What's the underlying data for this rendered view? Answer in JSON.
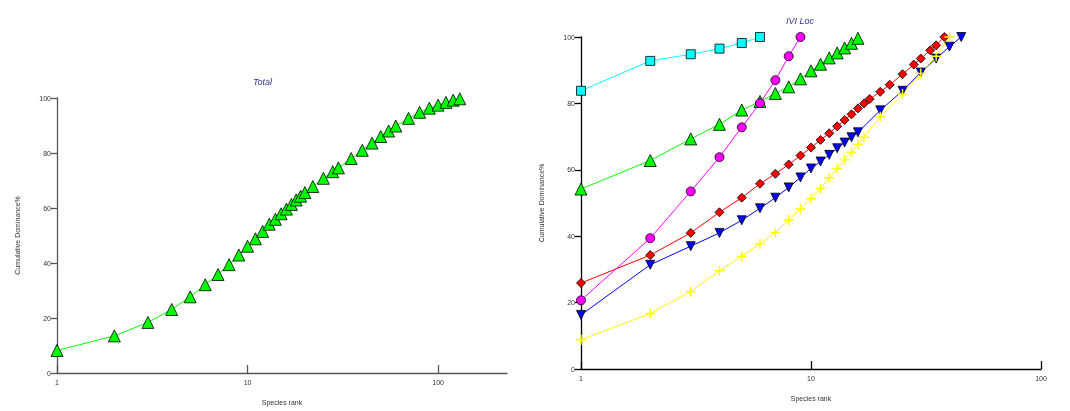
{
  "chart_data": [
    {
      "type": "line",
      "title": "Total",
      "xlabel": "Species rank",
      "ylabel": "Cumulative Dominance%",
      "log": "x",
      "xlim": [
        1,
        230
      ],
      "xticks": [
        1,
        10,
        100
      ],
      "ylim": [
        0,
        100
      ],
      "yticks": [
        0,
        20,
        40,
        60,
        80,
        100
      ],
      "grid": false,
      "marker": "triangle",
      "series": [
        {
          "color": "#00ff00",
          "x": [
            1,
            2,
            3,
            4,
            5,
            6,
            7,
            8,
            9,
            10,
            11,
            12,
            13,
            14,
            15,
            16,
            17,
            18,
            19,
            20,
            22,
            25,
            28,
            30,
            35,
            40,
            45,
            50,
            55,
            60,
            70,
            80,
            90,
            100,
            110,
            120,
            130
          ],
          "values": [
            8.2,
            13.5,
            18.4,
            23.1,
            27.7,
            32.1,
            35.8,
            39.4,
            42.9,
            46.1,
            48.8,
            51.5,
            54.1,
            55.9,
            57.9,
            59.6,
            61.3,
            62.9,
            64.3,
            65.6,
            67.8,
            70.8,
            73.2,
            74.6,
            78.0,
            81.0,
            83.6,
            86.0,
            88.0,
            89.8,
            92.6,
            94.8,
            96.3,
            97.4,
            98.4,
            99.2,
            99.7
          ]
        }
      ]
    },
    {
      "type": "line",
      "title": "IVI Loc",
      "xlabel": "Species rank",
      "ylabel": "Cumulative Dominance%",
      "log": "x",
      "xlim": [
        1,
        100
      ],
      "xticks": [
        1,
        10,
        100
      ],
      "ylim": [
        0,
        100
      ],
      "yticks": [
        0,
        20,
        40,
        60,
        80,
        100
      ],
      "grid": false,
      "series": [
        {
          "color": "#00ff00",
          "marker": "triangle",
          "x": [
            1,
            2,
            3,
            4,
            5,
            6,
            7,
            8,
            9,
            10,
            11,
            12,
            13,
            14,
            15,
            16
          ],
          "values": [
            54.2,
            62.8,
            69.3,
            73.7,
            78.0,
            80.6,
            83.0,
            85.0,
            87.4,
            89.8,
            91.8,
            93.7,
            95.2,
            96.7,
            98.1,
            99.6
          ]
        },
        {
          "color": "#0000ff",
          "marker": "triangle-down",
          "x": [
            1,
            2,
            3,
            4,
            5,
            6,
            7,
            8,
            9,
            10,
            11,
            12,
            13,
            14,
            15,
            16,
            20,
            25,
            30,
            35,
            40,
            45
          ],
          "values": [
            16.3,
            31.4,
            37.0,
            41.0,
            44.8,
            48.4,
            51.6,
            54.7,
            57.7,
            60.4,
            62.5,
            64.5,
            66.5,
            68.2,
            69.8,
            71.3,
            77.9,
            83.8,
            89.3,
            93.5,
            97.1,
            100
          ]
        },
        {
          "color": "#00ffff",
          "marker": "square",
          "x": [
            1,
            2,
            3,
            4,
            5,
            6
          ],
          "values": [
            83.8,
            92.8,
            94.8,
            96.5,
            98.2,
            100
          ]
        },
        {
          "color": "#ff0000",
          "marker": "diamond",
          "x": [
            1,
            2,
            3,
            4,
            5,
            6,
            7,
            8,
            9,
            10,
            11,
            12,
            13,
            14,
            15,
            16,
            17,
            18,
            20,
            22,
            25,
            28,
            30,
            33,
            35,
            38
          ],
          "values": [
            25.9,
            34.3,
            41.0,
            47.2,
            51.6,
            55.8,
            58.8,
            61.6,
            64.3,
            66.7,
            69.0,
            71.0,
            73.1,
            75.0,
            76.7,
            78.5,
            80.0,
            81.3,
            83.5,
            85.6,
            88.8,
            91.7,
            93.5,
            96.0,
            97.5,
            100
          ]
        },
        {
          "color": "#ff00ff",
          "marker": "circle",
          "x": [
            1,
            2,
            3,
            4,
            5,
            6,
            7,
            8,
            9
          ],
          "values": [
            20.7,
            39.4,
            53.5,
            63.8,
            72.8,
            80.1,
            87.0,
            94.2,
            100
          ]
        },
        {
          "color": "#ffff00",
          "marker": "cross",
          "x": [
            1,
            2,
            3,
            4,
            5,
            6,
            7,
            8,
            9,
            10,
            11,
            12,
            13,
            14,
            15,
            16,
            17,
            20,
            25,
            30,
            35,
            40
          ],
          "values": [
            8.8,
            16.7,
            23.3,
            29.6,
            33.9,
            37.7,
            41.1,
            44.9,
            48.2,
            51.3,
            54.4,
            57.6,
            60.4,
            63.0,
            65.3,
            67.6,
            69.8,
            76.0,
            82.8,
            89.0,
            94.2,
            100
          ]
        }
      ]
    }
  ]
}
